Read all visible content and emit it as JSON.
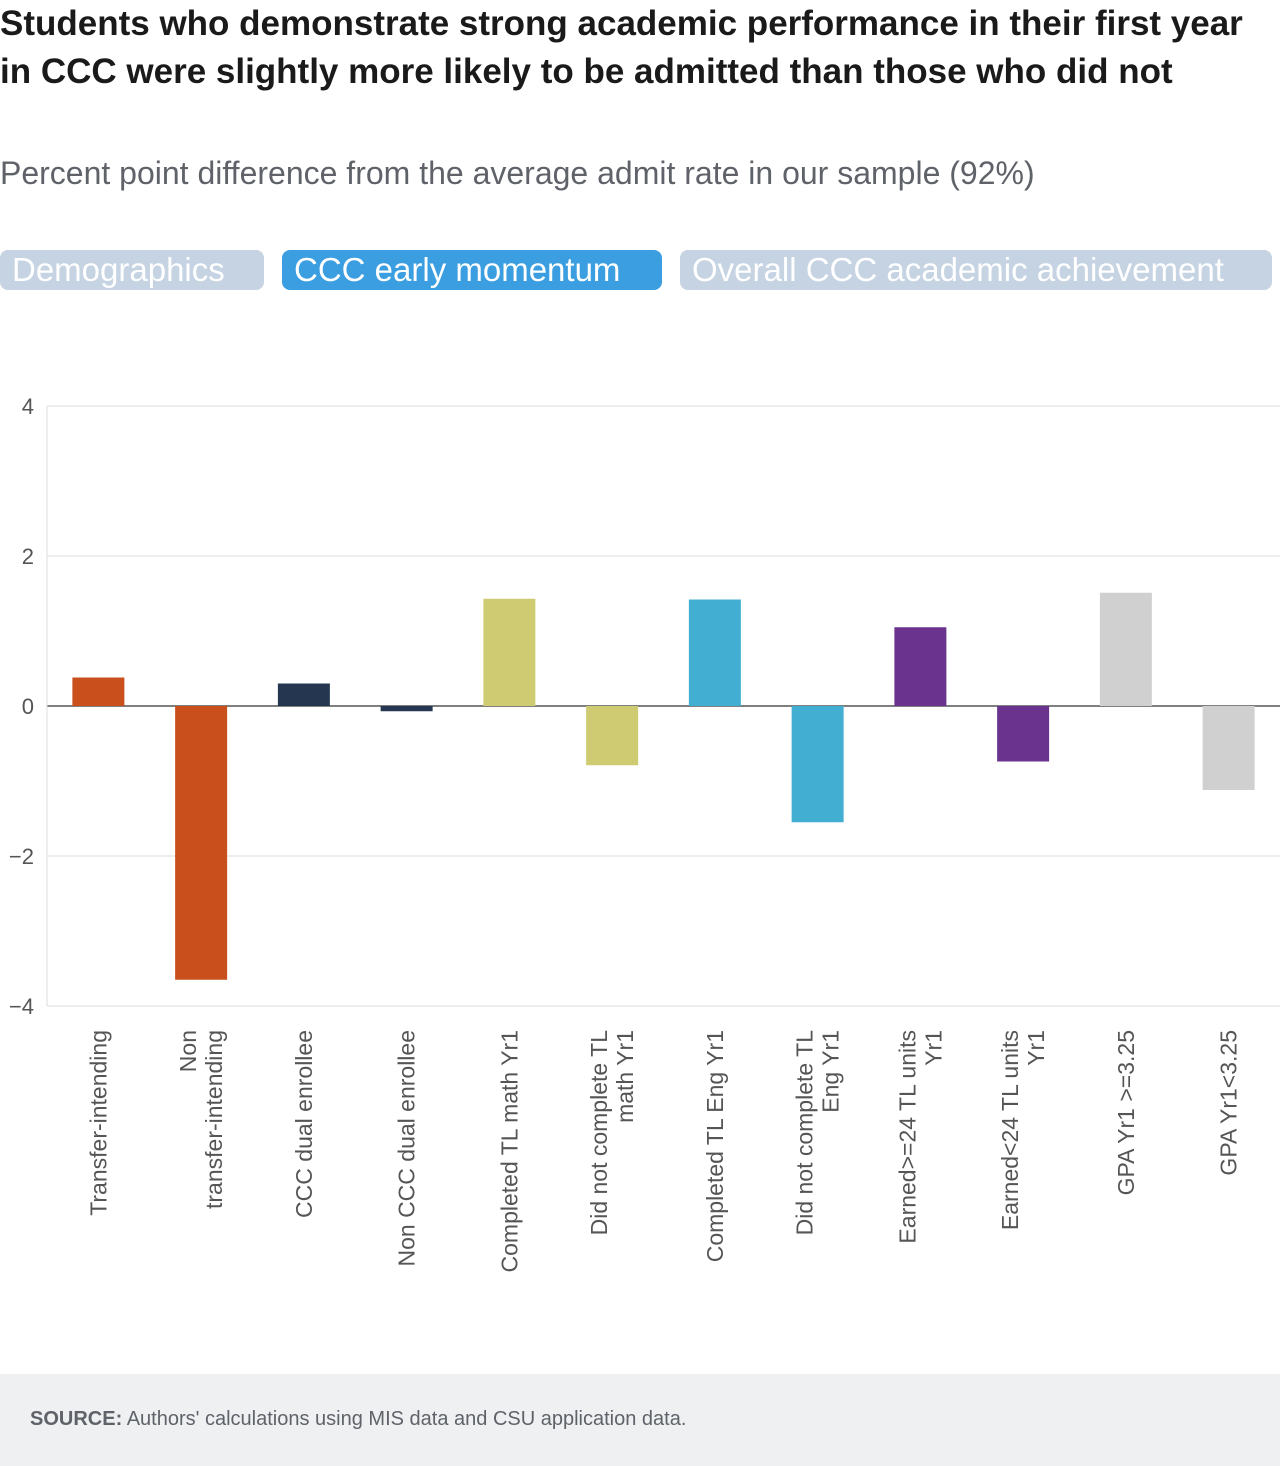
{
  "header": {
    "title": "Students who demonstrate strong academic performance in their first year in CCC were slightly more likely to be admitted than those who did not",
    "subtitle": "Percent point difference from the average admit rate in our sample (92%)"
  },
  "tabs": [
    {
      "label": "Demographics",
      "active": false
    },
    {
      "label": "CCC early momentum",
      "active": true
    },
    {
      "label": "Overall CCC academic achievement",
      "active": false
    }
  ],
  "chart_data": {
    "type": "bar",
    "categories": [
      "Transfer-intending",
      "Non transfer-intending",
      "CCC dual enrollee",
      "Non CCC dual enrollee",
      "Completed TL math Yr1",
      "Did not complete TL math Yr1",
      "Completed TL Eng Yr1",
      "Did not complete TL Eng Yr1",
      "Earned>=24 TL units Yr1",
      "Earned<24 TL units Yr1",
      "GPA Yr1 >=3.25",
      "GPA Yr1<3.25"
    ],
    "values": [
      0.38,
      -3.65,
      0.3,
      -0.07,
      1.43,
      -0.79,
      1.42,
      -1.55,
      1.05,
      -0.74,
      1.51,
      -1.12
    ],
    "colors": [
      "#c9501c",
      "#c9501c",
      "#253750",
      "#253750",
      "#cfcb72",
      "#cfcb72",
      "#42aed2",
      "#42aed2",
      "#6a348e",
      "#6a348e",
      "#d0d0d0",
      "#d0d0d0"
    ],
    "ylim": [
      -4,
      4
    ],
    "yticks": [
      4,
      2,
      0,
      -2,
      -4
    ],
    "ytick_labels": [
      "4",
      "2",
      "0",
      "−2",
      "−4"
    ],
    "grid": true
  },
  "footer": {
    "source_label": "SOURCE:",
    "source_text": " Authors' calculations using MIS data and CSU application data."
  }
}
